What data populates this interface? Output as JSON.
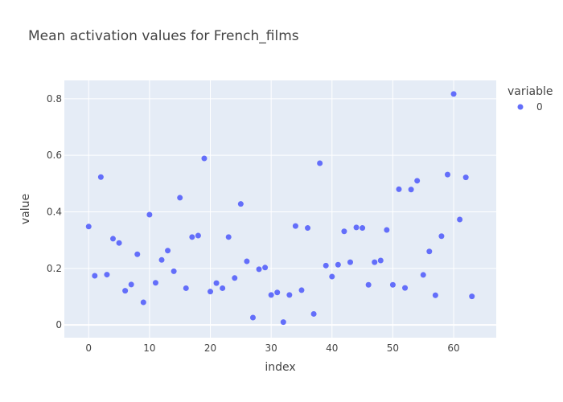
{
  "chart_data": {
    "type": "scatter",
    "title": "Mean activation values for French_films",
    "xlabel": "index",
    "ylabel": "value",
    "xlim": [
      -4,
      67
    ],
    "ylim": [
      -0.045,
      0.865
    ],
    "xticks": [
      0,
      10,
      20,
      30,
      40,
      50,
      60
    ],
    "yticks": [
      0,
      0.2,
      0.4,
      0.6,
      0.8
    ],
    "xtick_labels": [
      "0",
      "10",
      "20",
      "30",
      "40",
      "50",
      "60"
    ],
    "ytick_labels": [
      "0",
      "0.2",
      "0.4",
      "0.6",
      "0.8"
    ],
    "grid": true,
    "legend": {
      "title": "variable",
      "position": "top-right",
      "entries": [
        "0"
      ]
    },
    "colors": {
      "marker": "#636efa",
      "plot_bg": "#e5ecf6",
      "grid": "#ffffff",
      "text": "#444444"
    },
    "series": [
      {
        "name": "0",
        "x": [
          0,
          1,
          2,
          3,
          4,
          5,
          6,
          7,
          8,
          9,
          10,
          11,
          12,
          13,
          14,
          15,
          16,
          17,
          18,
          19,
          20,
          21,
          22,
          23,
          24,
          25,
          26,
          27,
          28,
          29,
          30,
          31,
          32,
          33,
          34,
          35,
          36,
          37,
          38,
          39,
          40,
          41,
          42,
          43,
          44,
          45,
          46,
          47,
          48,
          49,
          50,
          51,
          52,
          53,
          54,
          55,
          56,
          57,
          58,
          59,
          60,
          61,
          62,
          63
        ],
        "y": [
          0.348,
          0.174,
          0.523,
          0.178,
          0.305,
          0.29,
          0.121,
          0.143,
          0.25,
          0.08,
          0.39,
          0.149,
          0.23,
          0.263,
          0.19,
          0.45,
          0.13,
          0.311,
          0.316,
          0.589,
          0.118,
          0.148,
          0.13,
          0.311,
          0.166,
          0.428,
          0.225,
          0.026,
          0.197,
          0.203,
          0.106,
          0.115,
          0.01,
          0.106,
          0.35,
          0.123,
          0.343,
          0.039,
          0.572,
          0.21,
          0.171,
          0.213,
          0.331,
          0.222,
          0.345,
          0.343,
          0.142,
          0.222,
          0.228,
          0.336,
          0.142,
          0.48,
          0.131,
          0.479,
          0.51,
          0.177,
          0.26,
          0.105,
          0.314,
          0.532,
          0.817,
          0.373,
          0.522,
          0.101
        ]
      }
    ]
  }
}
